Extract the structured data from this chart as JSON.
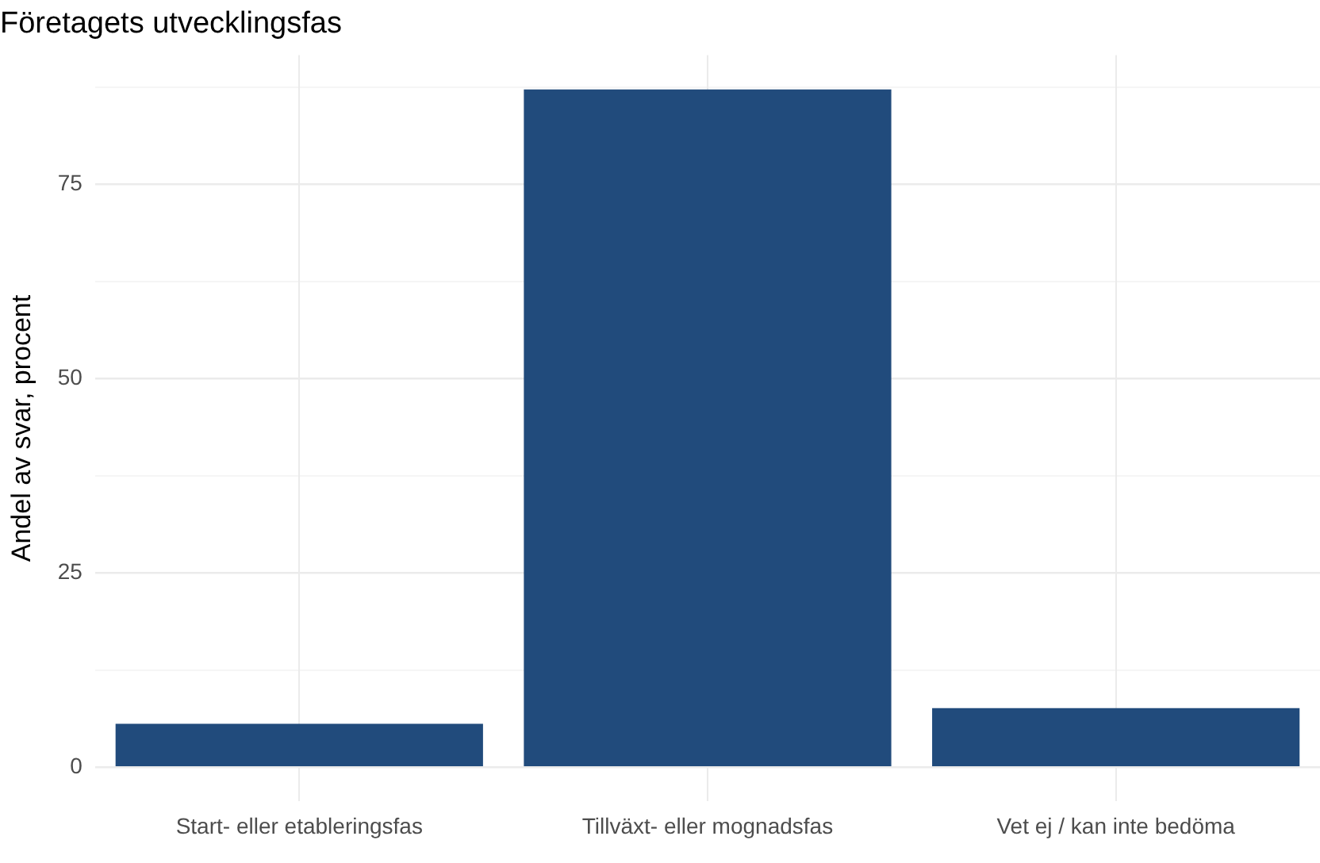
{
  "chart_data": {
    "type": "bar",
    "title": "Företagets utvecklingsfas",
    "ylabel": "Andel av svar, procent",
    "categories": [
      "Start- eller etableringsfas",
      "Tillväxt- eller mognadsfas",
      "Vet ej / kan inte bedöma"
    ],
    "values": [
      5.6,
      87.2,
      7.6
    ],
    "color": "#214b7c",
    "ylim": [
      -4.4,
      91.6
    ],
    "yticks": [
      0,
      {
        "value": 12.5,
        "label": null
      },
      25,
      {
        "value": 37.5,
        "label": null
      },
      50,
      {
        "value": 62.5,
        "label": null
      },
      75,
      {
        "value": 87.5,
        "label": null
      }
    ],
    "grid": true,
    "legend": false
  }
}
